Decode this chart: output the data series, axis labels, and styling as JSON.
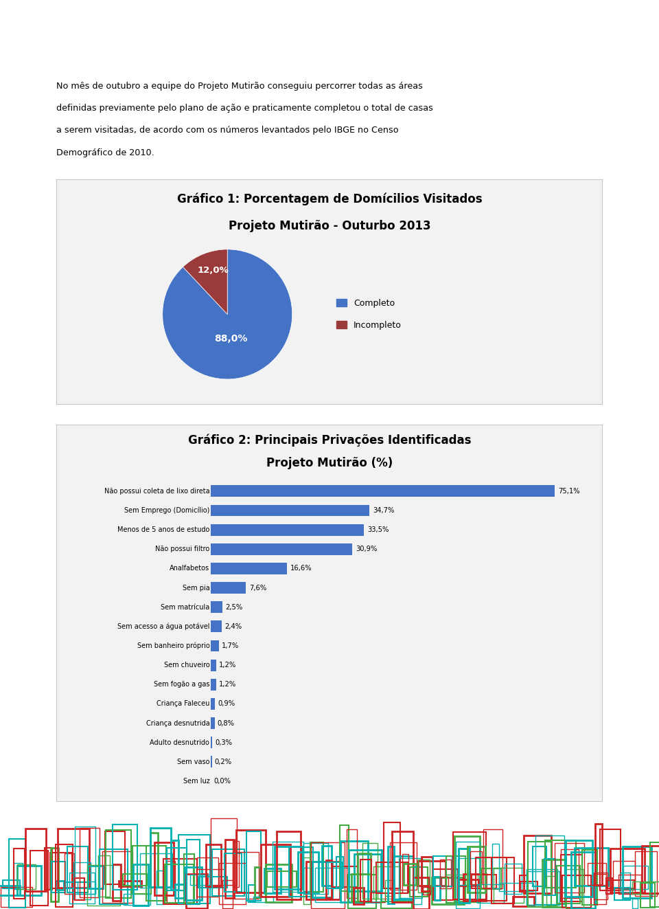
{
  "page_bg": "#ffffff",
  "intro_text_lines": [
    "No mês de outubro a equipe do Projeto Mutirão conseguiu percorrer todas as áreas",
    "definidas previamente pelo plano de ação e praticamente completou o total de casas",
    "a serem visitadas, de acordo com os números levantados pelo IBGE no Censo",
    "Demográfico de 2010."
  ],
  "chart1_title_line1": "Gráfico 1: Porcentagem de Domícilios Visitados",
  "chart1_title_line2": "Projeto Mutirão - Outurbo 2013",
  "pie_values": [
    88.0,
    12.0
  ],
  "pie_label_88": "88,0%",
  "pie_label_12": "12,0%",
  "pie_colors": [
    "#4472c4",
    "#9b3a3a"
  ],
  "pie_legend_labels": [
    "Completo",
    "Incompleto"
  ],
  "chart2_title_line1": "Gráfico 2: Principais Privações Identificadas",
  "chart2_title_line2": "Projeto Mutirão (%)",
  "bar_categories": [
    "Não possui coleta de lixo direta",
    "Sem Emprego (Domicílio)",
    "Menos de 5 anos de estudo",
    "Não possui filtro",
    "Analfabetos",
    "Sem pia",
    "Sem matrícula",
    "Sem acesso a água potável",
    "Sem banheiro próprio",
    "Sem chuveiro",
    "Sem fogão a gas",
    "Criança Faleceu",
    "Criança desnutrida",
    "Adulto desnutrido",
    "Sem vaso",
    "Sem luz"
  ],
  "bar_values": [
    75.1,
    34.7,
    33.5,
    30.9,
    16.6,
    7.6,
    2.5,
    2.4,
    1.7,
    1.2,
    1.2,
    0.9,
    0.8,
    0.3,
    0.2,
    0.0
  ],
  "bar_value_labels": [
    "75,1%",
    "34,7%",
    "33,5%",
    "30,9%",
    "16,6%",
    "7,6%",
    "2,5%",
    "2,4%",
    "1,7%",
    "1,2%",
    "1,2%",
    "0,9%",
    "0,8%",
    "0,3%",
    "0,2%",
    "0,0%"
  ],
  "bar_color": "#4472c4",
  "bar_xlim": [
    0,
    85
  ],
  "deco_colors": [
    "#00b0b0",
    "#cc2222",
    "#44aa44"
  ],
  "box_facecolor": "#f2f2f2",
  "box_edgecolor": "#bbbbbb"
}
